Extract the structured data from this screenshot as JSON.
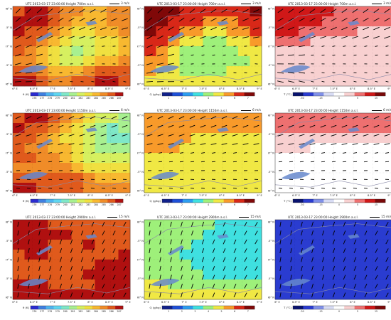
{
  "timestamp": "UTC  2013-03-17 23:00:00",
  "rows": [
    {
      "height": "Height  700m a.s.l.",
      "arrow_key": "3 m/s"
    },
    {
      "height": "Height  1150m a.s.l.",
      "arrow_key": "6 m/s"
    },
    {
      "height": "Height  2900m a.s.l.",
      "arrow_key": "15 m/s"
    }
  ],
  "colorbars": {
    "theta": {
      "label": "θ (K)",
      "ticks": [
        "276",
        "277",
        "278",
        "279",
        "280",
        "281",
        "282",
        "283",
        "284",
        "285",
        "286",
        "287"
      ],
      "colors": [
        "#2b2bd0",
        "#3f7fe0",
        "#4fb4ef",
        "#5fd6f0",
        "#7fe8c8",
        "#a8f090",
        "#d6f060",
        "#f0e040",
        "#f8b830",
        "#f08c28",
        "#e05a1c",
        "#b01010"
      ]
    },
    "q": {
      "label": "Q (g/kg)",
      "ticks": [
        "1",
        "2",
        "3",
        "4",
        "5",
        "6",
        "7"
      ],
      "colors": [
        "#10208a",
        "#1e50d8",
        "#2d9df0",
        "#3fe0e0",
        "#9ef07a",
        "#f0e844",
        "#f89a2a",
        "#d82818",
        "#800808"
      ]
    },
    "temp": {
      "label": "T (°C)",
      "ticks": [
        "-30",
        "-15",
        "0",
        "5",
        "15"
      ],
      "colors": [
        "#08126e",
        "#2a3cd0",
        "#8090e8",
        "#d8dcf4",
        "#ffffff",
        "#f8d0d0",
        "#ee7070",
        "#d01818",
        "#7a0808"
      ]
    }
  },
  "lon_ticks": [
    "6° E",
    "6.5° E",
    "7° E",
    "7.5° E",
    "8° E",
    "8.5° E",
    "9° E"
  ],
  "lat_ticks": [
    "48° N",
    "47.5° N",
    "47° N",
    "46.5° N",
    "46° N"
  ],
  "chart_data": [
    {
      "type": "heatmap",
      "title": "UTC  2013-03-17 23:00:00   Height  700m a.s.l.",
      "variable": "θ (K)",
      "wind_key": "3 m/s",
      "grid": [
        [
          10,
          11,
          11,
          10,
          9,
          9,
          8,
          8,
          9,
          9
        ],
        [
          11,
          11,
          11,
          10,
          9,
          8,
          8,
          8,
          9,
          9
        ],
        [
          11,
          10,
          10,
          9,
          8,
          7,
          7,
          8,
          8,
          9
        ],
        [
          10,
          10,
          9,
          8,
          7,
          6,
          6,
          7,
          7,
          8
        ],
        [
          10,
          9,
          8,
          7,
          6,
          5,
          6,
          7,
          7,
          8
        ],
        [
          9,
          9,
          8,
          7,
          6,
          6,
          7,
          8,
          8,
          9
        ],
        [
          10,
          10,
          9,
          8,
          8,
          8,
          9,
          10,
          10,
          10
        ],
        [
          11,
          11,
          10,
          9,
          9,
          10,
          10,
          11,
          11,
          10
        ]
      ]
    },
    {
      "type": "heatmap",
      "title": "UTC  2013-03-17 23:00:00   Height  700m a.s.l.",
      "variable": "Q (g/kg)",
      "wind_key": "3 m/s",
      "grid": [
        [
          8,
          8,
          8,
          7,
          7,
          7,
          7,
          7,
          7,
          8
        ],
        [
          8,
          8,
          7,
          7,
          7,
          6,
          6,
          6,
          7,
          7
        ],
        [
          8,
          7,
          7,
          6,
          6,
          5,
          5,
          6,
          6,
          7
        ],
        [
          7,
          7,
          6,
          5,
          5,
          4,
          4,
          5,
          5,
          6
        ],
        [
          7,
          6,
          5,
          4,
          4,
          4,
          4,
          4,
          5,
          5
        ],
        [
          6,
          6,
          5,
          4,
          4,
          4,
          4,
          4,
          4,
          5
        ],
        [
          6,
          5,
          5,
          4,
          4,
          4,
          4,
          5,
          5,
          5
        ],
        [
          5,
          5,
          5,
          5,
          5,
          5,
          5,
          5,
          5,
          5
        ]
      ]
    },
    {
      "type": "heatmap",
      "title": "UTC  2013-03-17 23:00:00   Height  700m a.s.l.",
      "variable": "T (°C)",
      "wind_key": "3 m/s",
      "grid": [
        [
          7,
          7,
          7,
          7,
          7,
          6,
          6,
          6,
          6,
          6
        ],
        [
          7,
          7,
          7,
          7,
          6,
          6,
          6,
          6,
          6,
          6
        ],
        [
          7,
          7,
          6,
          6,
          6,
          6,
          6,
          5,
          5,
          5
        ],
        [
          6,
          6,
          6,
          5,
          5,
          5,
          5,
          5,
          5,
          5
        ],
        [
          5,
          5,
          5,
          5,
          5,
          5,
          5,
          5,
          5,
          5
        ],
        [
          5,
          5,
          5,
          5,
          5,
          5,
          5,
          5,
          5,
          5
        ],
        [
          5,
          5,
          5,
          5,
          5,
          5,
          5,
          5,
          5,
          5
        ],
        [
          5,
          5,
          5,
          5,
          5,
          5,
          5,
          5,
          5,
          5
        ]
      ]
    },
    {
      "type": "heatmap",
      "title": "UTC  2013-03-17 23:00:00   Height  1150m a.s.l.",
      "variable": "θ (K)",
      "wind_key": "6 m/s",
      "grid": [
        [
          10,
          11,
          11,
          10,
          9,
          8,
          7,
          6,
          6,
          5
        ],
        [
          11,
          10,
          10,
          9,
          8,
          7,
          6,
          5,
          4,
          5
        ],
        [
          10,
          10,
          9,
          8,
          7,
          7,
          6,
          5,
          4,
          4
        ],
        [
          10,
          9,
          9,
          8,
          8,
          7,
          6,
          5,
          5,
          5
        ],
        [
          10,
          10,
          9,
          9,
          8,
          7,
          6,
          6,
          6,
          6
        ],
        [
          9,
          9,
          9,
          9,
          9,
          8,
          7,
          7,
          7,
          7
        ],
        [
          10,
          10,
          10,
          10,
          10,
          10,
          9,
          8,
          8,
          8
        ],
        [
          11,
          11,
          10,
          10,
          10,
          10,
          9,
          9,
          9,
          9
        ]
      ]
    },
    {
      "type": "heatmap",
      "title": "UTC  2013-03-17 23:00:00   Height  1150m a.s.l.",
      "variable": "Q (g/kg)",
      "wind_key": "6 m/s",
      "grid": [
        [
          6,
          6,
          6,
          6,
          6,
          6,
          6,
          6,
          6,
          6
        ],
        [
          6,
          6,
          6,
          6,
          6,
          6,
          6,
          6,
          6,
          6
        ],
        [
          6,
          6,
          6,
          6,
          5,
          5,
          5,
          5,
          5,
          5
        ],
        [
          6,
          6,
          6,
          5,
          5,
          5,
          5,
          5,
          5,
          5
        ],
        [
          5,
          5,
          5,
          5,
          5,
          5,
          5,
          5,
          5,
          5
        ],
        [
          5,
          5,
          5,
          5,
          5,
          5,
          5,
          5,
          5,
          5
        ],
        [
          5,
          5,
          5,
          5,
          5,
          5,
          5,
          5,
          5,
          5
        ],
        [
          5,
          5,
          5,
          5,
          5,
          5,
          5,
          5,
          5,
          5
        ]
      ]
    },
    {
      "type": "heatmap",
      "title": "UTC  2013-03-17 23:00:00   Height  1150m a.s.l.",
      "variable": "T (°C)",
      "wind_key": "6 m/s",
      "grid": [
        [
          6,
          6,
          6,
          6,
          6,
          6,
          6,
          6,
          6,
          6
        ],
        [
          6,
          6,
          6,
          6,
          6,
          6,
          6,
          6,
          6,
          6
        ],
        [
          5,
          5,
          5,
          5,
          5,
          5,
          5,
          5,
          5,
          5
        ],
        [
          5,
          5,
          5,
          4,
          4,
          4,
          4,
          4,
          4,
          4
        ],
        [
          4,
          4,
          4,
          4,
          4,
          4,
          4,
          4,
          4,
          4
        ],
        [
          4,
          4,
          4,
          4,
          4,
          4,
          4,
          4,
          4,
          4
        ],
        [
          4,
          4,
          4,
          4,
          4,
          4,
          4,
          4,
          4,
          4
        ],
        [
          4,
          4,
          4,
          4,
          4,
          4,
          4,
          4,
          4,
          4
        ]
      ]
    },
    {
      "type": "heatmap",
      "title": "UTC  2013-03-17 23:00:00   Height  2900m a.s.l.",
      "variable": "θ (K)",
      "wind_key": "15 m/s",
      "grid": [
        [
          11,
          11,
          11,
          10,
          10,
          10,
          10,
          10,
          10,
          10
        ],
        [
          11,
          11,
          11,
          11,
          11,
          10,
          10,
          10,
          10,
          10
        ],
        [
          11,
          11,
          11,
          10,
          10,
          10,
          11,
          10,
          10,
          10
        ],
        [
          10,
          11,
          11,
          10,
          10,
          10,
          10,
          10,
          10,
          11
        ],
        [
          10,
          10,
          10,
          10,
          10,
          10,
          10,
          11,
          11,
          11
        ],
        [
          10,
          10,
          10,
          10,
          10,
          10,
          11,
          11,
          11,
          11
        ],
        [
          11,
          11,
          11,
          10,
          10,
          10,
          10,
          11,
          11,
          11
        ],
        [
          11,
          11,
          11,
          11,
          11,
          11,
          11,
          11,
          11,
          11
        ]
      ]
    },
    {
      "type": "heatmap",
      "title": "UTC  2013-03-17 23:00:00   Height  2900m a.s.l.",
      "variable": "Q (g/kg)",
      "wind_key": "15 m/s",
      "grid": [
        [
          4,
          4,
          4,
          4,
          4,
          4,
          3,
          3,
          3,
          3
        ],
        [
          4,
          4,
          4,
          4,
          4,
          3,
          3,
          3,
          3,
          3
        ],
        [
          4,
          4,
          4,
          4,
          3,
          3,
          3,
          3,
          3,
          3
        ],
        [
          4,
          4,
          4,
          3,
          3,
          3,
          3,
          3,
          3,
          3
        ],
        [
          4,
          4,
          4,
          4,
          3,
          3,
          3,
          3,
          3,
          3
        ],
        [
          4,
          4,
          4,
          4,
          4,
          3,
          3,
          3,
          3,
          3
        ],
        [
          5,
          5,
          4,
          4,
          4,
          4,
          4,
          4,
          4,
          4
        ],
        [
          5,
          5,
          5,
          5,
          5,
          5,
          5,
          5,
          5,
          5
        ]
      ]
    },
    {
      "type": "heatmap",
      "title": "UTC  2013-03-17 23:00:00   Height  2900m a.s.l.",
      "variable": "T (°C)",
      "wind_key": "15 m/s",
      "grid": [
        [
          1,
          1,
          1,
          1,
          1,
          1,
          1,
          1,
          1,
          1
        ],
        [
          1,
          1,
          1,
          1,
          1,
          1,
          1,
          1,
          1,
          1
        ],
        [
          1,
          1,
          1,
          1,
          1,
          1,
          1,
          1,
          1,
          1
        ],
        [
          1,
          1,
          1,
          1,
          1,
          1,
          1,
          1,
          1,
          1
        ],
        [
          1,
          1,
          1,
          1,
          1,
          1,
          1,
          1,
          1,
          1
        ],
        [
          1,
          1,
          1,
          1,
          1,
          1,
          1,
          1,
          1,
          1
        ],
        [
          1,
          1,
          1,
          1,
          1,
          1,
          1,
          1,
          1,
          1
        ],
        [
          1,
          1,
          1,
          1,
          1,
          1,
          1,
          1,
          1,
          1
        ]
      ]
    }
  ]
}
